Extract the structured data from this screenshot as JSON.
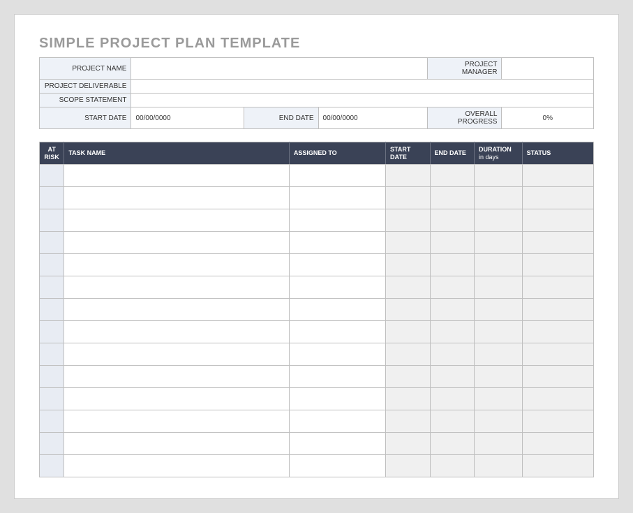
{
  "title": "SIMPLE PROJECT PLAN TEMPLATE",
  "meta": {
    "labels": {
      "project_name": "PROJECT NAME",
      "project_manager": "PROJECT MANAGER",
      "project_deliverable": "PROJECT DELIVERABLE",
      "scope_statement": "SCOPE STATEMENT",
      "start_date": "START DATE",
      "end_date": "END DATE",
      "overall_progress": "OVERALL PROGRESS"
    },
    "values": {
      "project_name": "",
      "project_manager": "",
      "project_deliverable": "",
      "scope_statement": "",
      "start_date": "00/00/0000",
      "end_date": "00/00/0000",
      "overall_progress": "0%"
    }
  },
  "columns": {
    "at_risk": "AT RISK",
    "task_name": "TASK NAME",
    "assigned_to": "ASSIGNED TO",
    "start_date": "START DATE",
    "end_date": "END DATE",
    "duration": "DURATION",
    "duration_sub": "in days",
    "status": "STATUS"
  },
  "row_count": 14,
  "colors": {
    "page_bg": "#e0e0e0",
    "paper_bg": "#ffffff",
    "border": "#bfbfbf",
    "title_color": "#9a9a9a",
    "header_bg": "#3a4256",
    "header_text": "#ffffff",
    "label_bg": "#eef2f8",
    "shade_blue": "#e8ecf3",
    "shade_gray": "#f0f0f0"
  }
}
